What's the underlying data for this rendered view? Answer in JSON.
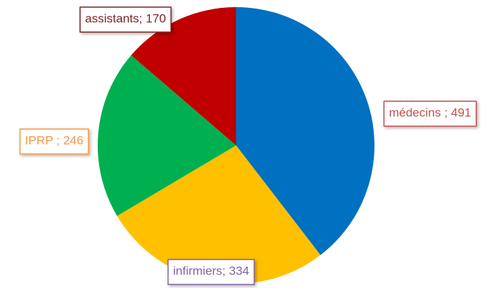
{
  "chart_data": {
    "type": "pie",
    "values": [
      491,
      334,
      246,
      170
    ],
    "value_labels": [
      "médecins ; 491",
      "infirmiers; 334",
      "IPRP ; 246",
      "assistants; 170"
    ],
    "colors": [
      "#0070c0",
      "#ffc000",
      "#00b050",
      "#c00000"
    ],
    "label_colors": [
      "#c0504d",
      "#8064a2",
      "#f79646",
      "#7b2525"
    ],
    "start_angle": 0,
    "direction": "clockwise"
  }
}
